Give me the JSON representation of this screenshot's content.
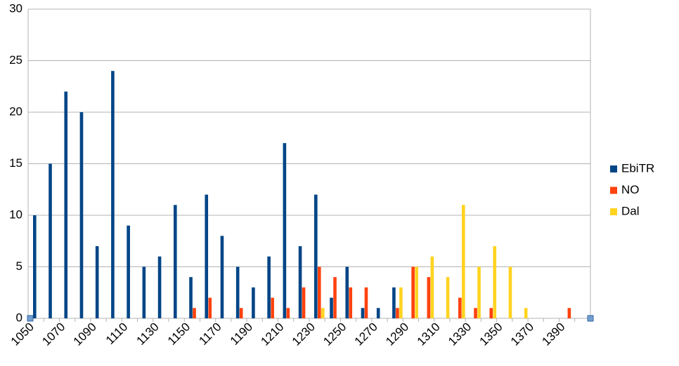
{
  "chart_data": {
    "type": "bar",
    "categories": [
      "1050",
      null,
      "1070",
      null,
      "1090",
      null,
      "1110",
      null,
      "1130",
      null,
      "1150",
      null,
      "1170",
      null,
      "1190",
      null,
      "1210",
      null,
      "1230",
      null,
      "1250",
      null,
      "1270",
      null,
      "1290",
      null,
      "1310",
      null,
      "1330",
      null,
      "1350",
      null,
      "1370",
      null,
      "1390",
      null
    ],
    "series": [
      {
        "name": "EbiTR",
        "color": "#004586",
        "values": [
          10,
          15,
          22,
          20,
          7,
          24,
          9,
          5,
          6,
          11,
          4,
          12,
          8,
          5,
          3,
          6,
          17,
          7,
          12,
          2,
          5,
          1,
          1,
          3,
          0,
          0,
          0,
          0,
          0,
          0,
          0,
          0,
          0,
          0,
          0,
          0
        ]
      },
      {
        "name": "NO",
        "color": "#ff420e",
        "values": [
          0,
          0,
          0,
          0,
          0,
          0,
          0,
          0,
          0,
          0,
          1,
          2,
          0,
          1,
          0,
          2,
          1,
          3,
          5,
          4,
          3,
          3,
          0,
          1,
          5,
          4,
          0,
          2,
          1,
          1,
          0,
          0,
          0,
          0,
          1,
          0
        ]
      },
      {
        "name": "Dal",
        "color": "#ffd320",
        "values": [
          0,
          0,
          0,
          0,
          0,
          0,
          0,
          0,
          0,
          0,
          0,
          0,
          0,
          0,
          0,
          0,
          0,
          0,
          1,
          0,
          0,
          0,
          0,
          3,
          5,
          6,
          4,
          11,
          5,
          7,
          5,
          1,
          0,
          0,
          0,
          0
        ]
      }
    ],
    "ylim": [
      0,
      30
    ],
    "yticks": [
      0,
      5,
      10,
      15,
      20,
      25,
      30
    ],
    "grid": true,
    "legend": "right"
  }
}
